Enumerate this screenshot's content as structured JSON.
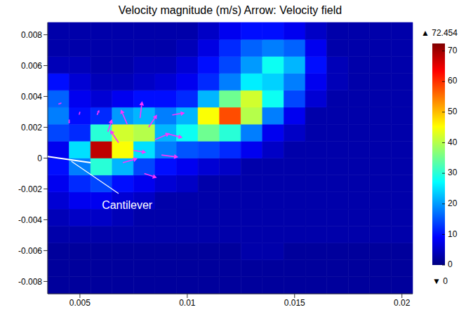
{
  "chart_data": {
    "type": "heatmap",
    "title": "Velocity magnitude (m/s) Arrow: Velocity field",
    "xlim": [
      0.0035,
      0.0205
    ],
    "ylim": [
      -0.0088,
      0.0088
    ],
    "xticks": [
      0.005,
      0.01,
      0.015,
      0.02
    ],
    "yticks": [
      -0.008,
      -0.006,
      -0.004,
      -0.002,
      0,
      0.002,
      0.004,
      0.006,
      0.008
    ],
    "x_edges": [
      0.0035,
      0.0045,
      0.0055,
      0.0065,
      0.0075,
      0.0085,
      0.0095,
      0.0105,
      0.0115,
      0.0125,
      0.0135,
      0.0145,
      0.0155,
      0.0165,
      0.0175,
      0.0185,
      0.0195,
      0.0205
    ],
    "y_edges": [
      -0.0088,
      -0.0077,
      -0.0066,
      -0.0055,
      -0.0044,
      -0.0033,
      -0.0022,
      -0.0011,
      0,
      0.0011,
      0.0022,
      0.0033,
      0.0044,
      0.0055,
      0.0066,
      0.0077,
      0.0088
    ],
    "values": [
      [
        2,
        2,
        2,
        2,
        2,
        2,
        2,
        2,
        2,
        2,
        2,
        2,
        2,
        2,
        2,
        2,
        2
      ],
      [
        2,
        2,
        2,
        2,
        2,
        2,
        2,
        2,
        2,
        2,
        2,
        2,
        2,
        2,
        2,
        2,
        2
      ],
      [
        2,
        2,
        2,
        2,
        2,
        2,
        2,
        2,
        2,
        3,
        3,
        2,
        2,
        2,
        2,
        2,
        2
      ],
      [
        3,
        3,
        3,
        3,
        3,
        3,
        3,
        3,
        3,
        3,
        3,
        3,
        3,
        3,
        3,
        3,
        3
      ],
      [
        4,
        5,
        5,
        4,
        3,
        3,
        3,
        3,
        3,
        3,
        3,
        3,
        3,
        3,
        3,
        3,
        3
      ],
      [
        6,
        8,
        8,
        6,
        5,
        3,
        3,
        3,
        3,
        3,
        3,
        3,
        3,
        3,
        3,
        3,
        3
      ],
      [
        8,
        12,
        14,
        10,
        8,
        6,
        5,
        3,
        3,
        3,
        3,
        3,
        3,
        3,
        3,
        3,
        3
      ],
      [
        10,
        18,
        30,
        22,
        14,
        10,
        8,
        6,
        5,
        3,
        3,
        3,
        3,
        3,
        3,
        3,
        3
      ],
      [
        8,
        25,
        68,
        45,
        25,
        18,
        15,
        14,
        12,
        8,
        5,
        3,
        3,
        3,
        3,
        3,
        3
      ],
      [
        14,
        12,
        30,
        42,
        40,
        22,
        28,
        35,
        30,
        18,
        8,
        5,
        3,
        3,
        3,
        3,
        3
      ],
      [
        18,
        10,
        12,
        20,
        22,
        18,
        22,
        45,
        58,
        40,
        18,
        8,
        3,
        3,
        3,
        3,
        3
      ],
      [
        16,
        8,
        6,
        8,
        10,
        10,
        12,
        22,
        35,
        42,
        28,
        14,
        6,
        3,
        3,
        3,
        3
      ],
      [
        10,
        6,
        4,
        4,
        5,
        6,
        8,
        12,
        18,
        26,
        24,
        18,
        8,
        4,
        3,
        3,
        3
      ],
      [
        4,
        4,
        3,
        3,
        4,
        4,
        6,
        10,
        14,
        20,
        28,
        22,
        10,
        4,
        3,
        3,
        3
      ],
      [
        3,
        3,
        3,
        3,
        3,
        3,
        4,
        7,
        12,
        16,
        18,
        16,
        8,
        3,
        3,
        3,
        3
      ],
      [
        3,
        3,
        3,
        3,
        3,
        3,
        3,
        5,
        8,
        10,
        10,
        8,
        5,
        3,
        3,
        3,
        3
      ]
    ],
    "colorbar": {
      "range": [
        0,
        72.454
      ],
      "ticks": [
        0,
        10,
        20,
        30,
        40,
        50,
        60,
        70
      ],
      "max": {
        "value": 72.454,
        "label": "▲ 72.454"
      },
      "min": {
        "value": 0,
        "label": "▼ 0"
      }
    },
    "vectors": {
      "color": "#ff33ff",
      "points": [
        {
          "x": 0.0068,
          "y": 0.001,
          "u": -20,
          "v": 30
        },
        {
          "x": 0.0072,
          "y": 0.0022,
          "u": -15,
          "v": 35
        },
        {
          "x": 0.0078,
          "y": 0.0026,
          "u": 5,
          "v": 40
        },
        {
          "x": 0.0082,
          "y": 0.002,
          "u": 20,
          "v": 30
        },
        {
          "x": 0.0085,
          "y": 0.0012,
          "u": 35,
          "v": 15
        },
        {
          "x": 0.0075,
          "y": 0.0005,
          "u": 30,
          "v": -5
        },
        {
          "x": 0.007,
          "y": -0.0003,
          "u": 35,
          "v": 10
        },
        {
          "x": 0.0088,
          "y": 0.0002,
          "u": 40,
          "v": -5
        },
        {
          "x": 0.009,
          "y": 0.0016,
          "u": 40,
          "v": -10
        },
        {
          "x": 0.0063,
          "y": 0.0017,
          "u": 10,
          "v": 30
        },
        {
          "x": 0.008,
          "y": -0.001,
          "u": 30,
          "v": -10
        },
        {
          "x": 0.0093,
          "y": 0.0028,
          "u": 30,
          "v": 5
        },
        {
          "x": 0.0045,
          "y": 0.0025,
          "u": 0,
          "v": -10
        },
        {
          "x": 0.004,
          "y": 0.0035,
          "u": 8,
          "v": 3
        },
        {
          "x": 0.005,
          "y": 0.003,
          "u": -2,
          "v": -8
        },
        {
          "x": 0.0058,
          "y": 0.0028,
          "u": 5,
          "v": 12
        }
      ]
    },
    "cantilever": {
      "color": "#ffffff",
      "x": [
        0.0035,
        0.0055
      ],
      "y": [
        0.0001,
        -0.0003
      ]
    },
    "annotations": [
      {
        "text": "Cantilever",
        "x": 0.0072,
        "y": -0.0031,
        "from": [
          0.0068,
          -0.0023
        ],
        "to": [
          0.0046,
          -0.0002
        ]
      }
    ]
  }
}
